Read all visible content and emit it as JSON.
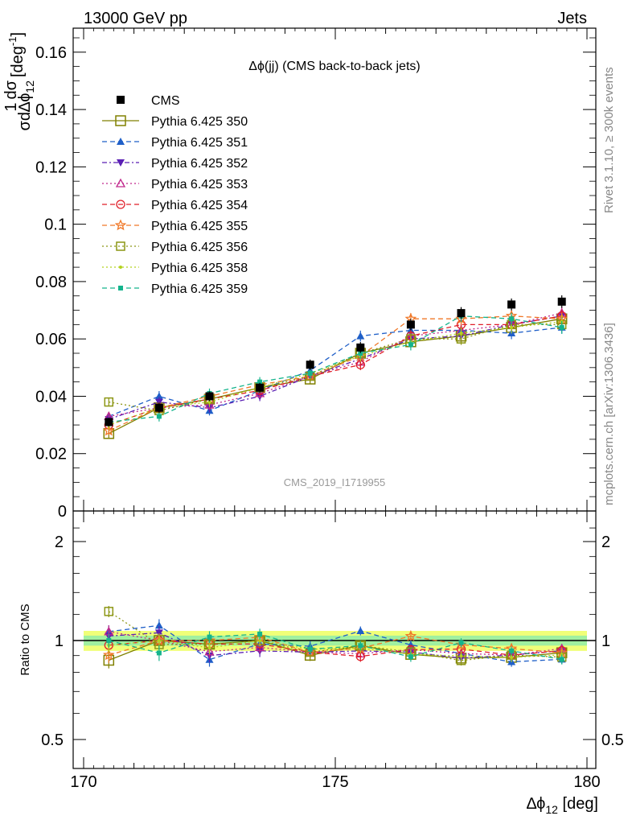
{
  "header": {
    "left": "13000 GeV pp",
    "right": "Jets"
  },
  "side_labels": {
    "rivet": "Rivet 3.1.10, ≥ 300k events",
    "mcplots": "mcplots.cern.ch [arXiv:1306.3436]"
  },
  "analysis_id": "CMS_2019_I1719955",
  "colors": {
    "CMS": "#000000",
    "Pythia 6.425 350": "#808000",
    "Pythia 6.425 351": "#1f5fc8",
    "Pythia 6.425 352": "#5a1fb4",
    "Pythia 6.425 353": "#c0288c",
    "Pythia 6.425 354": "#e01e28",
    "Pythia 6.425 355": "#f07828",
    "Pythia 6.425 356": "#8c9614",
    "Pythia 6.425 358": "#b4d21e",
    "Pythia 6.425 359": "#14b48c",
    "band_inner": "#a0f0a0",
    "band_outer": "#f0ff78"
  },
  "chart_data": {
    "type": "line",
    "title": "Δϕ(jj) (CMS back-to-back jets)",
    "xlabel": "Δϕ_12 [deg]",
    "ylabel": "1/σ dσ/dΔϕ_12 [deg^-1]",
    "ratio_ylabel": "Ratio to CMS",
    "xlim": [
      170,
      180
    ],
    "ylim": [
      0,
      0.165
    ],
    "ratio_ylim": [
      0.4,
      2.4
    ],
    "ratio_scale": "log",
    "x_ticks": [
      "170",
      "175",
      "180"
    ],
    "y_ticks": [
      "0",
      "0.02",
      "0.04",
      "0.06",
      "0.08",
      "0.1",
      "0.12",
      "0.14",
      "0.16"
    ],
    "ratio_ticks": [
      "0.5",
      "1",
      "2"
    ],
    "x": [
      170.5,
      171.5,
      172.5,
      173.5,
      174.5,
      175.5,
      176.5,
      177.5,
      178.5,
      179.5
    ],
    "series": [
      {
        "name": "CMS",
        "values": [
          0.031,
          0.036,
          0.04,
          0.043,
          0.051,
          0.057,
          0.065,
          0.069,
          0.072,
          0.073
        ]
      },
      {
        "name": "Pythia 6.425 350",
        "values": [
          0.027,
          0.036,
          0.039,
          0.043,
          0.046,
          0.055,
          0.059,
          0.061,
          0.064,
          0.067
        ]
      },
      {
        "name": "Pythia 6.425 351",
        "values": [
          0.033,
          0.04,
          0.035,
          0.042,
          0.049,
          0.061,
          0.063,
          0.063,
          0.062,
          0.064
        ]
      },
      {
        "name": "Pythia 6.425 352",
        "values": [
          0.032,
          0.038,
          0.036,
          0.04,
          0.047,
          0.053,
          0.06,
          0.061,
          0.065,
          0.068
        ]
      },
      {
        "name": "Pythia 6.425 353",
        "values": [
          0.033,
          0.036,
          0.037,
          0.041,
          0.047,
          0.052,
          0.061,
          0.063,
          0.065,
          0.069
        ]
      },
      {
        "name": "Pythia 6.425 354",
        "values": [
          0.03,
          0.036,
          0.039,
          0.042,
          0.047,
          0.051,
          0.061,
          0.065,
          0.065,
          0.068
        ]
      },
      {
        "name": "Pythia 6.425 355",
        "values": [
          0.028,
          0.036,
          0.04,
          0.044,
          0.047,
          0.054,
          0.067,
          0.067,
          0.068,
          0.067
        ]
      },
      {
        "name": "Pythia 6.425 356",
        "values": [
          0.038,
          0.035,
          0.039,
          0.043,
          0.047,
          0.055,
          0.06,
          0.06,
          0.065,
          0.065
        ]
      },
      {
        "name": "Pythia 6.425 358",
        "values": [
          0.03,
          0.036,
          0.038,
          0.043,
          0.048,
          0.054,
          0.059,
          0.062,
          0.064,
          0.066
        ]
      },
      {
        "name": "Pythia 6.425 359",
        "values": [
          0.031,
          0.033,
          0.041,
          0.045,
          0.048,
          0.055,
          0.058,
          0.068,
          0.067,
          0.064
        ]
      }
    ],
    "ratio_band": {
      "inner": [
        0.965,
        1.035
      ],
      "outer": [
        0.93,
        1.07
      ]
    }
  }
}
